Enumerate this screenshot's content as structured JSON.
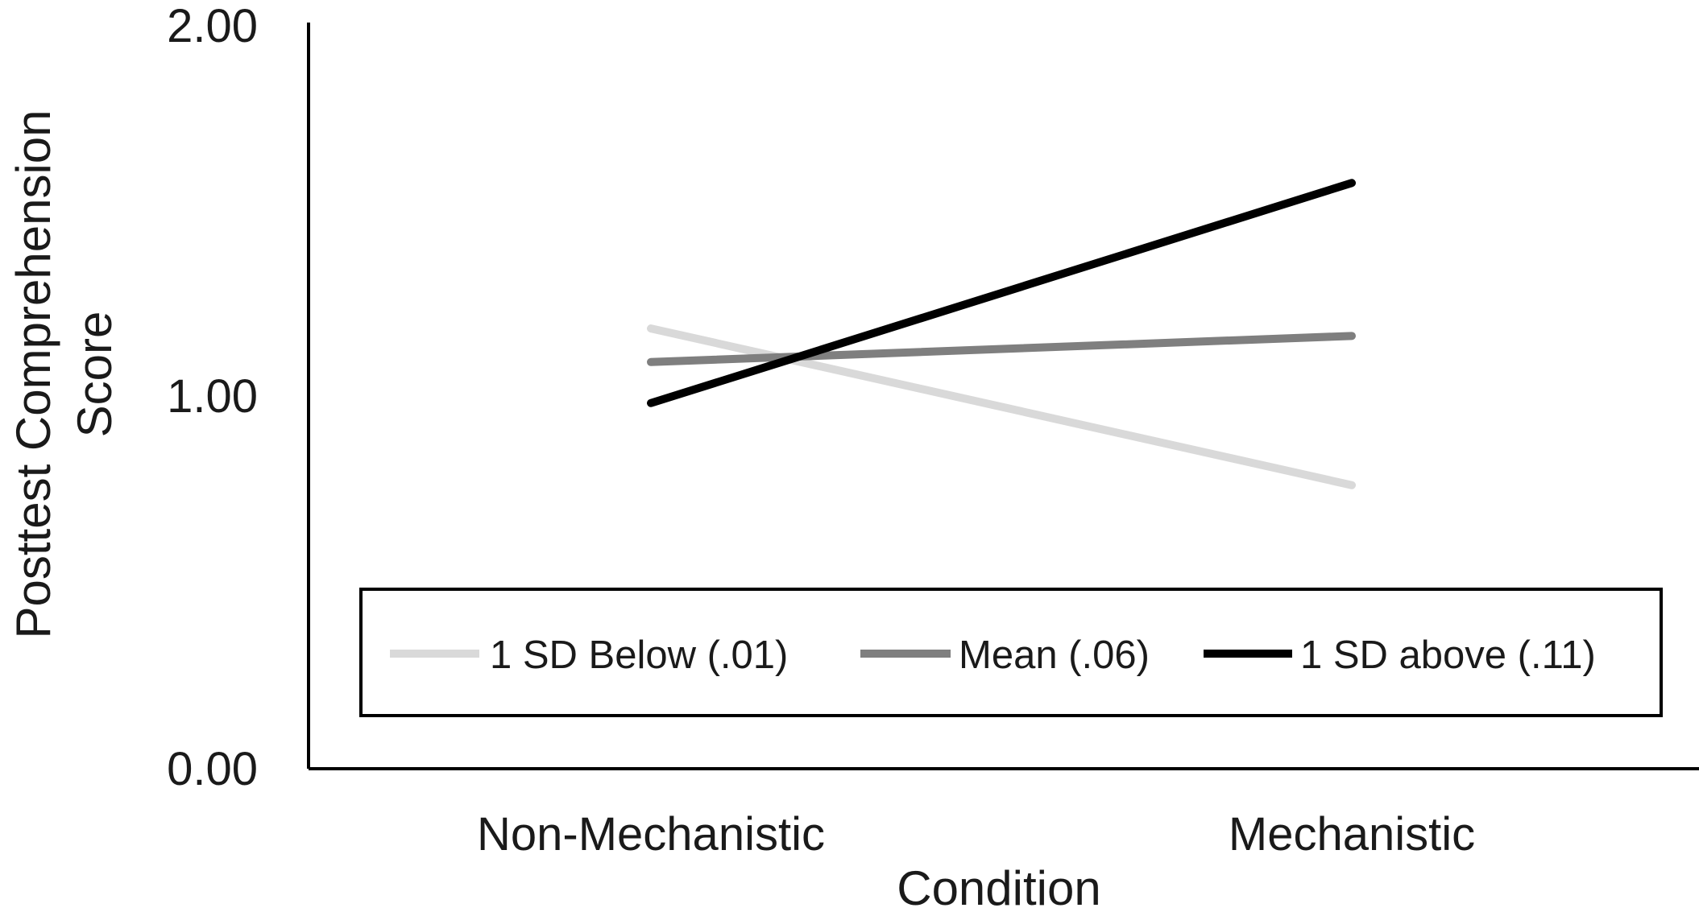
{
  "chart_data": {
    "type": "line",
    "title": "",
    "xlabel": "Condition",
    "ylabel_lines": [
      "Posttest Comprehension",
      "Score"
    ],
    "categories": [
      "Non-Mechanistic",
      "Mechanistic"
    ],
    "ylim": [
      0,
      2
    ],
    "yticks": [
      "0.00",
      "1.00",
      "2.00"
    ],
    "grid": false,
    "legend_position": "bottom-inside",
    "series": [
      {
        "name": "1 SD Below (.01)",
        "values": [
          1.18,
          0.76
        ],
        "color": "#d9d9d9"
      },
      {
        "name": "Mean (.06)",
        "values": [
          1.09,
          1.16
        ],
        "color": "#7f7f7f"
      },
      {
        "name": "1 SD above (.11)",
        "values": [
          0.98,
          1.57
        ],
        "color": "#000000"
      }
    ]
  }
}
